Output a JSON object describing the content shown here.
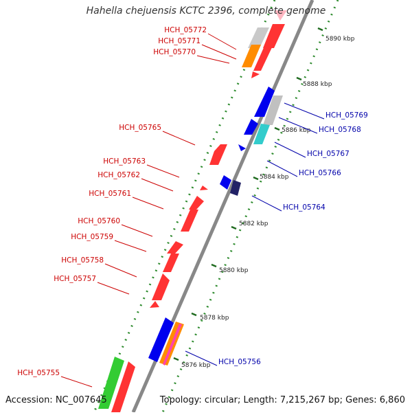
{
  "title": "Hahella chejuensis KCTC 2396, complete genome",
  "footer": {
    "accession": "Accession: NC_007645",
    "summary": "Topology: circular; Length: 7,215,267 bp; Genes: 6,860"
  },
  "colors": {
    "backbone": "#8a8a8a",
    "forward_label": "#cc0000",
    "reverse_label": "#0000aa",
    "scale_dot": "#2e8b2e",
    "tick": "#1f6b1f"
  },
  "scale_labels": [
    "5890 kbp",
    "5888 kbp",
    "5886 kbp",
    "5884 kbp",
    "5882 kbp",
    "5880 kbp",
    "5878 kbp",
    "5876 kbp"
  ],
  "forward_labels": [
    "HCH_05772",
    "HCH_05771",
    "HCH_05770",
    "HCH_05765",
    "HCH_05763",
    "HCH_05762",
    "HCH_05761",
    "HCH_05760",
    "HCH_05759",
    "HCH_05758",
    "HCH_05757",
    "HCH_05755"
  ],
  "reverse_labels": [
    "HCH_05769",
    "HCH_05768",
    "HCH_05767",
    "HCH_05766",
    "HCH_05764",
    "HCH_05756"
  ]
}
